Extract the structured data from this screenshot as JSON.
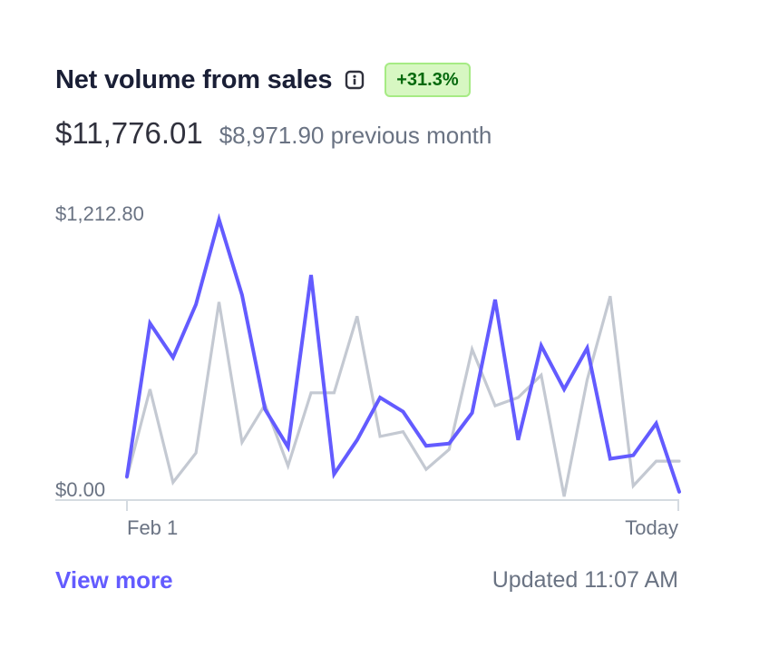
{
  "header": {
    "title": "Net volume from sales",
    "info_icon": "info-icon",
    "change_badge": "+31.3%"
  },
  "summary": {
    "current_value": "$11,776.01",
    "previous_value": "$8,971.90 previous month"
  },
  "colors": {
    "current_series": "#635bff",
    "previous_series": "#c4c9d2",
    "badge_bg": "#d7f7c2",
    "badge_text": "#05690d",
    "link": "#635bff"
  },
  "chart_data": {
    "type": "line",
    "y_tick_labels": [
      "$1,212.80",
      "$0.00"
    ],
    "x_tick_labels": [
      "Feb 1",
      "Today"
    ],
    "ylim": [
      0,
      1212.8
    ],
    "grid": false,
    "series": [
      {
        "values": [
          100,
          750,
          605,
          830,
          1190,
          870,
          385,
          225,
          955,
          110,
          255,
          435,
          375,
          230,
          240,
          370,
          850,
          255,
          655,
          470,
          645,
          175,
          190,
          325,
          35
        ]
      },
      {
        "values": [
          95,
          470,
          75,
          200,
          840,
          245,
          405,
          145,
          455,
          455,
          780,
          270,
          290,
          130,
          215,
          640,
          400,
          435,
          530,
          15,
          510,
          865,
          60,
          165,
          165
        ]
      }
    ]
  },
  "footer": {
    "view_more": "View more",
    "updated": "Updated 11:07 AM"
  }
}
